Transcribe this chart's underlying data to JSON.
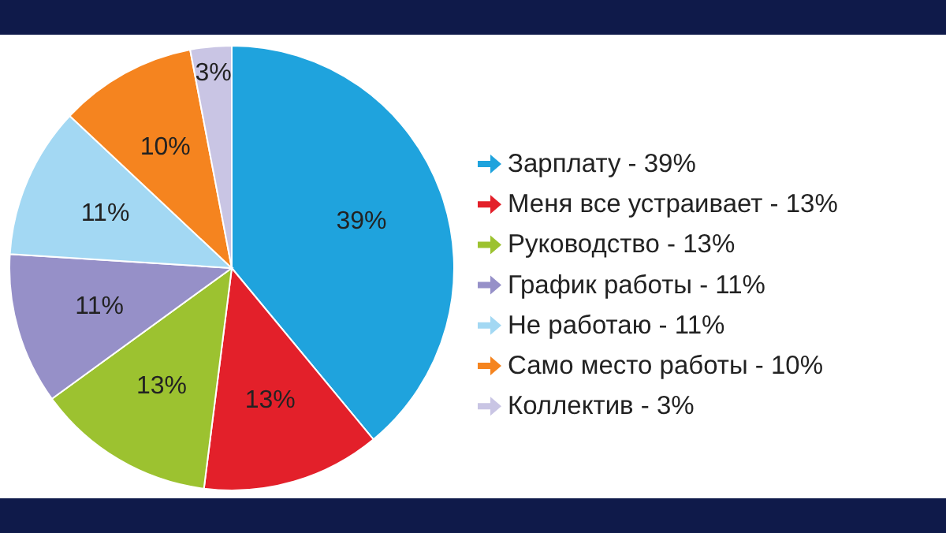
{
  "chart_data": {
    "type": "pie",
    "categories": [
      "Зарплату - 39%",
      "Меня все устраивает - 13%",
      "Руководство - 13%",
      "График работы - 11%",
      "Не работаю - 11%",
      "Само место работы - 10%",
      "Коллектив - 3%"
    ],
    "values": [
      39,
      13,
      13,
      11,
      11,
      10,
      3
    ],
    "colors": [
      "#1fa3dd",
      "#e3202a",
      "#9cc230",
      "#9690c8",
      "#a3d8f3",
      "#f5841f",
      "#c9c5e4"
    ],
    "value_labels": [
      "39%",
      "13%",
      "13%",
      "11%",
      "11%",
      "10%",
      "3%"
    ],
    "legend": "right"
  }
}
